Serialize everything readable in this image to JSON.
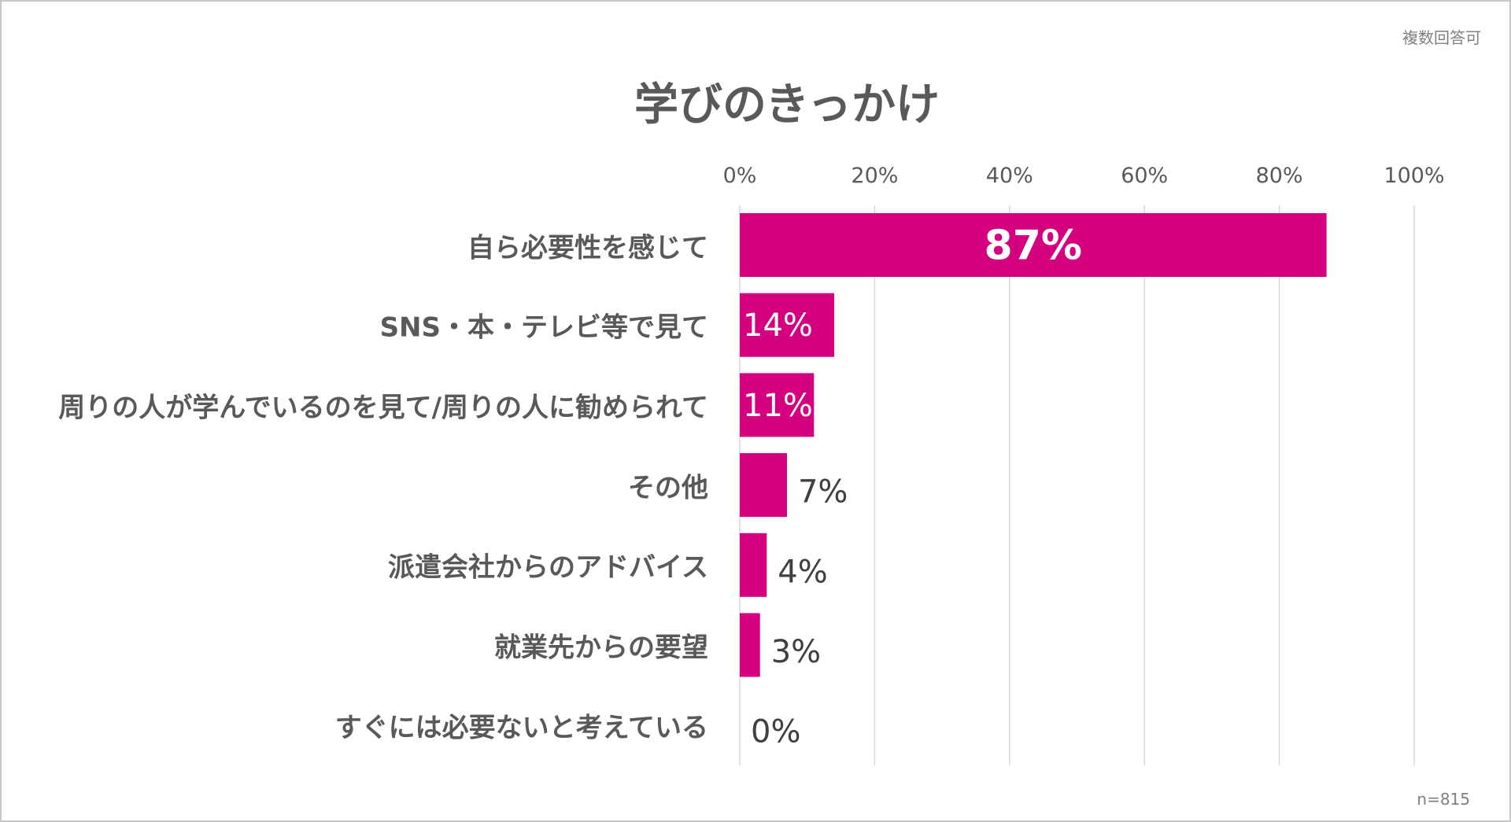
{
  "note": "複数回答可",
  "sample": "n=815",
  "chart_data": {
    "type": "bar",
    "orientation": "horizontal",
    "title": "学びのきっかけ",
    "categories": [
      "自ら必要性を感じて",
      "SNS・本・テレビ等で見て",
      "周りの人が学んでいるのを見て/周りの人に勧められて",
      "その他",
      "派遣会社からのアドバイス",
      "就業先からの要望",
      "すぐには必要ないと考えている"
    ],
    "values": [
      87,
      14,
      11,
      7,
      4,
      3,
      0
    ],
    "labels": [
      "87%",
      "14%",
      "11%",
      "7%",
      "4%",
      "3%",
      "0%"
    ],
    "xlim": [
      0,
      100
    ],
    "xticks": [
      "0%",
      "20%",
      "40%",
      "60%",
      "80%",
      "100%"
    ],
    "grid": true,
    "bar_color": "#d4007f"
  }
}
